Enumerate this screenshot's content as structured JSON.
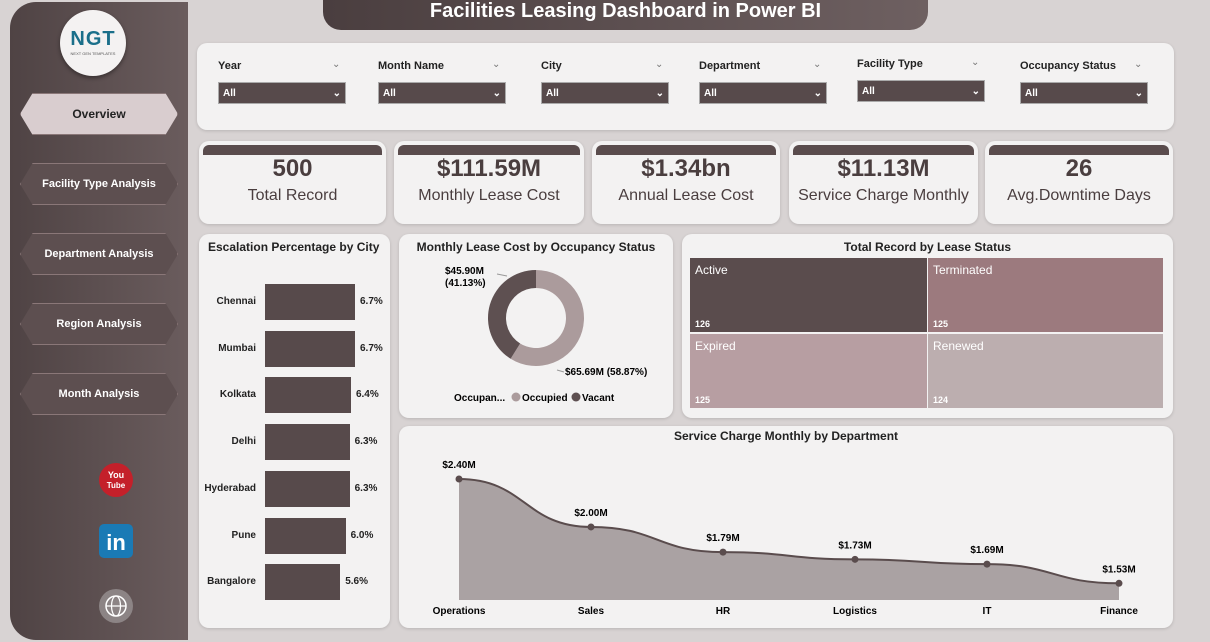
{
  "title": "Facilities Leasing Dashboard in Power BI",
  "logo": {
    "text": "NGT",
    "subtext": "NEXT GEN TEMPLATES"
  },
  "nav": [
    {
      "label": "Overview",
      "active": true
    },
    {
      "label": "Facility Type Analysis"
    },
    {
      "label": "Department Analysis"
    },
    {
      "label": "Region Analysis"
    },
    {
      "label": "Month Analysis"
    }
  ],
  "social": [
    "youtube-icon",
    "linkedin-icon",
    "globe-icon"
  ],
  "filters": [
    {
      "label": "Year",
      "value": "All"
    },
    {
      "label": "Month Name",
      "value": "All"
    },
    {
      "label": "City",
      "value": "All"
    },
    {
      "label": "Department",
      "value": "All"
    },
    {
      "label": "Facility Type",
      "value": "All"
    },
    {
      "label": "Occupancy Status",
      "value": "All"
    }
  ],
  "kpis": [
    {
      "value": "500",
      "label": "Total Record"
    },
    {
      "value": "$111.59M",
      "label": "Monthly Lease Cost"
    },
    {
      "value": "$1.34bn",
      "label": "Annual Lease Cost"
    },
    {
      "value": "$11.13M",
      "label": "Service Charge Monthly"
    },
    {
      "value": "26",
      "label": "Avg.Downtime Days"
    }
  ],
  "colors": {
    "dark": "#574a4b",
    "light": "#ab9b9c",
    "accent": "#4a3e3f"
  },
  "chart_data": [
    {
      "type": "bar",
      "title": "Escalation Percentage by City",
      "categories": [
        "Chennai",
        "Mumbai",
        "Kolkata",
        "Delhi",
        "Hyderabad",
        "Pune",
        "Bangalore"
      ],
      "values": [
        6.7,
        6.7,
        6.4,
        6.3,
        6.3,
        6.0,
        5.6
      ],
      "labels": [
        "6.7%",
        "6.7%",
        "6.4%",
        "6.3%",
        "6.3%",
        "6.0%",
        "5.6%"
      ]
    },
    {
      "type": "pie",
      "title": "Monthly Lease Cost by Occupancy Status",
      "legend_title": "Occupan...",
      "series": [
        {
          "name": "Occupied",
          "value": 65.69,
          "label": "$65.69M (58.87%)",
          "color": "#ab9b9c"
        },
        {
          "name": "Vacant",
          "value": 45.9,
          "label": "$45.90M (41.13%)",
          "color": "#5e5051"
        }
      ]
    },
    {
      "type": "treemap",
      "title": "Total Record by Lease Status",
      "items": [
        {
          "name": "Active",
          "value": 126,
          "color": "#5a4c4d"
        },
        {
          "name": "Terminated",
          "value": 125,
          "color": "#9c7a7e"
        },
        {
          "name": "Expired",
          "value": 125,
          "color": "#b79ea2"
        },
        {
          "name": "Renewed",
          "value": 124,
          "color": "#bcaeaf"
        }
      ]
    },
    {
      "type": "area",
      "title": "Service Charge Monthly by Department",
      "categories": [
        "Operations",
        "Sales",
        "HR",
        "Logistics",
        "IT",
        "Finance"
      ],
      "values": [
        2.4,
        2.0,
        1.79,
        1.73,
        1.69,
        1.53
      ],
      "labels": [
        "$2.40M",
        "$2.00M",
        "$1.79M",
        "$1.73M",
        "$1.69M",
        "$1.53M"
      ]
    }
  ]
}
